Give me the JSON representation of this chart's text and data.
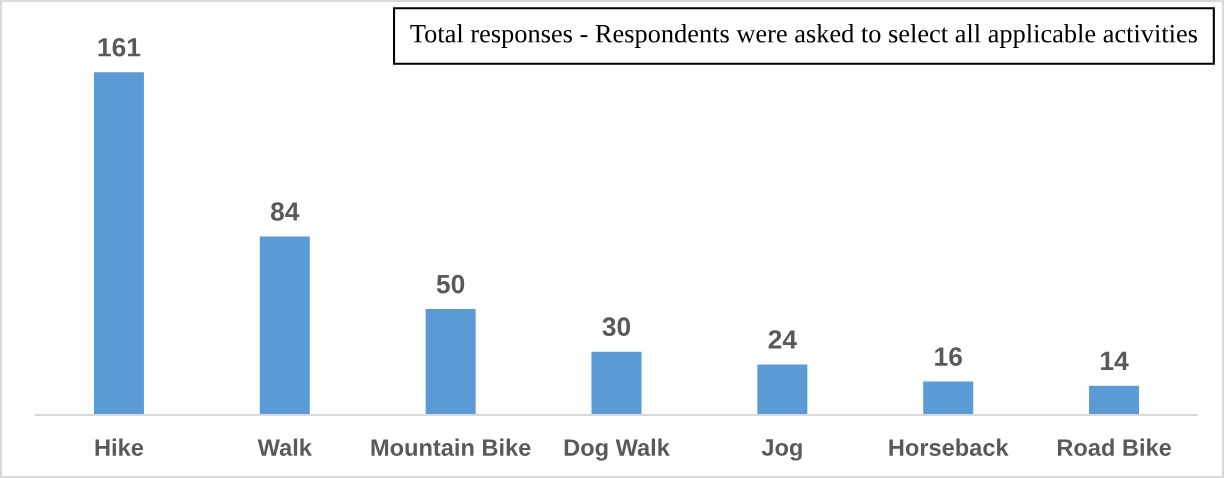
{
  "chart_data": {
    "type": "bar",
    "categories": [
      "Hike",
      "Walk",
      "Mountain Bike",
      "Dog Walk",
      "Jog",
      "Horseback",
      "Road Bike"
    ],
    "values": [
      161,
      84,
      50,
      30,
      24,
      16,
      14
    ],
    "color": "#5b9bd5",
    "data_labels": true,
    "annotations": [
      "Total responses - Respondents were asked to select all applicable activities"
    ]
  }
}
